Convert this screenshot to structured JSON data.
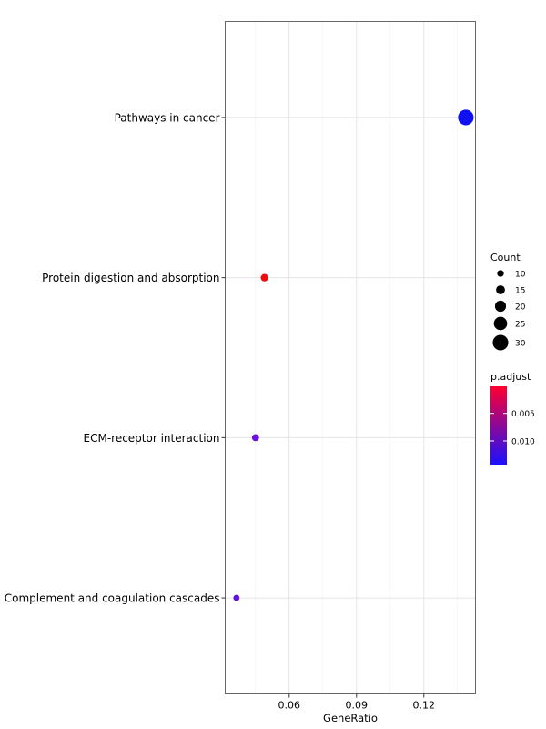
{
  "chart_data": {
    "type": "scatter",
    "title": "",
    "xlabel": "GeneRatio",
    "ylabel": "",
    "xlim": [
      0.0315,
      0.143
    ],
    "xticks": [
      0.06,
      0.09,
      0.12
    ],
    "xtick_labels": [
      "0.06",
      "0.09",
      "0.12"
    ],
    "grid": true,
    "categories": [
      "Pathways in cancer",
      "Protein digestion and absorption",
      "ECM-receptor interaction",
      "Complement and coagulation cascades"
    ],
    "points": [
      {
        "term": "Pathways in cancer",
        "gene_ratio": 0.1387,
        "count": 30,
        "p_adjust": 0.0143,
        "color": "#1010f0"
      },
      {
        "term": "Protein digestion and absorption",
        "gene_ratio": 0.049,
        "count": 12,
        "p_adjust": 0.0002,
        "color": "#ee0c0c"
      },
      {
        "term": "ECM-receptor interaction",
        "gene_ratio": 0.045,
        "count": 11,
        "p_adjust": 0.0118,
        "color": "#6a10e0"
      },
      {
        "term": "Complement and coagulation cascades",
        "gene_ratio": 0.0365,
        "count": 9,
        "p_adjust": 0.012,
        "color": "#6410e0"
      }
    ],
    "legend_size": {
      "title": "Count",
      "values": [
        10,
        15,
        20,
        25,
        30
      ],
      "labels": [
        "10",
        "15",
        "20",
        "25",
        "30"
      ]
    },
    "legend_color": {
      "title": "p.adjust",
      "low_color": "#ff0030",
      "high_color": "#1a10ff",
      "range": [
        0.0001,
        0.0143
      ],
      "ticks": [
        0.005,
        0.01
      ],
      "tick_labels": [
        "0.005",
        "0.010"
      ]
    },
    "legend_placement": "right"
  }
}
